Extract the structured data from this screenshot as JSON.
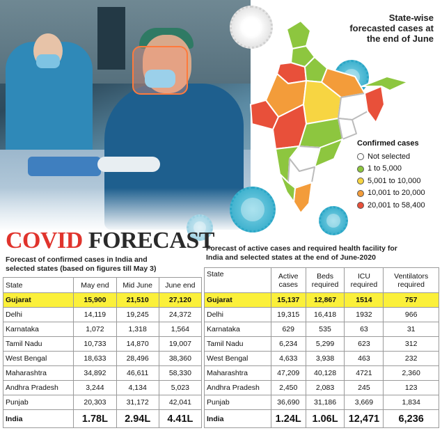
{
  "map": {
    "title_lines": [
      "State-wise",
      "forecasted cases at",
      "the end of June"
    ],
    "legend": {
      "title": "Confirmed cases",
      "items": [
        {
          "label": "Not selected",
          "color": "#ffffff"
        },
        {
          "label": "1 to 5,000",
          "color": "#8dc63f"
        },
        {
          "label": "5,001 to 10,000",
          "color": "#f7d542"
        },
        {
          "label": "10,001 to 20,000",
          "color": "#f39c3a"
        },
        {
          "label": "20,001 to 58,400",
          "color": "#e8503a"
        }
      ]
    }
  },
  "heading": {
    "word1": "COVID",
    "word2": "FORECAST"
  },
  "left_table": {
    "caption_lines": [
      "Forecast of confirmed cases in India and",
      "selected states (based on figures till May 3)"
    ],
    "headers": [
      "State",
      "May end",
      "Mid June",
      "June end"
    ],
    "rows": [
      [
        "Gujarat",
        "15,900",
        "21,510",
        "27,120"
      ],
      [
        "Delhi",
        "14,119",
        "19,245",
        "24,372"
      ],
      [
        "Karnataka",
        "1,072",
        "1,318",
        "1,564"
      ],
      [
        "Tamil Nadu",
        "10,733",
        "14,870",
        "19,007"
      ],
      [
        "West Bengal",
        "18,633",
        "28,496",
        "38,360"
      ],
      [
        "Maharashtra",
        "34,892",
        "46,611",
        "58,330"
      ],
      [
        "Andhra Pradesh",
        "3,244",
        "4,134",
        "5,023"
      ],
      [
        "Punjab",
        "20,303",
        "31,172",
        "42,041"
      ],
      [
        "India",
        "1.78L",
        "2.94L",
        "4.41L"
      ]
    ]
  },
  "right_table": {
    "caption_lines": [
      "Forecast of active cases and required health facility for",
      "India and selected states at the end of June-2020"
    ],
    "headers": [
      "State",
      "Active cases",
      "Beds required",
      "ICU required",
      "Ventilators required"
    ],
    "rows": [
      [
        "Gujarat",
        "15,137",
        "12,867",
        "1514",
        "757"
      ],
      [
        "Delhi",
        "19,315",
        "16,418",
        "1932",
        "966"
      ],
      [
        "Karnataka",
        "629",
        "535",
        "63",
        "31"
      ],
      [
        "Tamil Nadu",
        "6,234",
        "5,299",
        "623",
        "312"
      ],
      [
        "West Bengal",
        "4,633",
        "3,938",
        "463",
        "232"
      ],
      [
        "Maharashtra",
        "47,209",
        "40,128",
        "4721",
        "2,360"
      ],
      [
        "Andhra Pradesh",
        "2,450",
        "2,083",
        "245",
        "123"
      ],
      [
        "Punjab",
        "36,690",
        "31,186",
        "3,669",
        "1,834"
      ],
      [
        "India",
        "1.24L",
        "1.06L",
        "12,471",
        "6,236"
      ]
    ]
  }
}
